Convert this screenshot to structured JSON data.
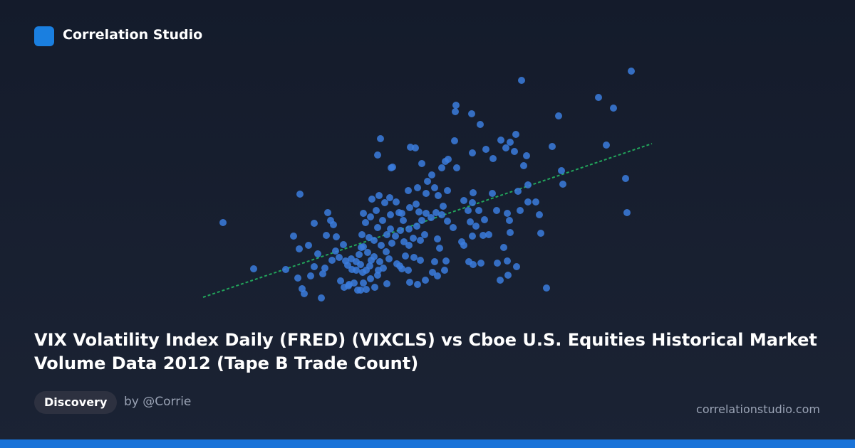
{
  "brand": "Correlation Studio",
  "title": "VIX Volatility Index Daily (FRED) (VIXCLS) vs Cboe U.S. Equities Historical Market Volume Data 2012 (Tape B Trade Count)",
  "tag": "Discovery",
  "author": "by @Corrie",
  "site": "correlationstudio.com",
  "chart_data": {
    "type": "scatter",
    "color": "#3b7ddd",
    "xlim": [
      0,
      640
    ],
    "ylim": [
      0,
      340
    ],
    "x": [
      33,
      76,
      121,
      141,
      132,
      138,
      144,
      147,
      171,
      156,
      161,
      166,
      153,
      140,
      161,
      180,
      188,
      192,
      178,
      176,
      191,
      196,
      202,
      205,
      210,
      203,
      214,
      217,
      222,
      230,
      234,
      246,
      240,
      229,
      226,
      220,
      224,
      230,
      228,
      233,
      230,
      240,
      248,
      242,
      252,
      260,
      267,
      276,
      280,
      268,
      257,
      250,
      245,
      255,
      262,
      266,
      258,
      250,
      263,
      277,
      284,
      289,
      294,
      300,
      305,
      294,
      286,
      284,
      295,
      304,
      308,
      312,
      318,
      325,
      332,
      340,
      348,
      356,
      342,
      335,
      330,
      320,
      326,
      312,
      303,
      296,
      271,
      250,
      254,
      269,
      293,
      306,
      318,
      348,
      340,
      349,
      361,
      360,
      359,
      382,
      394,
      383,
      402,
      412,
      423,
      436,
      444,
      430,
      442,
      459,
      455,
      452,
      504,
      495,
      508,
      510,
      461,
      447,
      411,
      384,
      383,
      371,
      377,
      392,
      417,
      432,
      450,
      461,
      472,
      477,
      435,
      436,
      427,
      432,
      422,
      433,
      445,
      487,
      479,
      406,
      398,
      383,
      380,
      388,
      371,
      368,
      378,
      384,
      395,
      418,
      400,
      560,
      581,
      606,
      571,
      598,
      600,
      358,
      345,
      334,
      344,
      327,
      317,
      306,
      295,
      293,
      281,
      270,
      275,
      287,
      310,
      316,
      334,
      337,
      346,
      330,
      310,
      301,
      282,
      268,
      263,
      238,
      227,
      236,
      245,
      253,
      239,
      241,
      213,
      208,
      198,
      186,
      173,
      184,
      220,
      234,
      251,
      209,
      226
    ],
    "values": [
      117,
      52,
      51,
      157,
      98,
      39,
      24,
      17,
      11,
      42,
      55,
      73,
      85,
      80,
      116,
      131,
      114,
      97,
      99,
      53,
      77,
      68,
      86,
      63,
      30,
      26,
      51,
      32,
      22,
      32,
      23,
      26,
      38,
      47,
      58,
      62,
      72,
      83,
      100,
      117,
      130,
      125,
      134,
      150,
      155,
      145,
      152,
      146,
      131,
      128,
      120,
      110,
      92,
      85,
      76,
      66,
      53,
      43,
      31,
      59,
      52,
      70,
      85,
      95,
      112,
      108,
      120,
      130,
      138,
      143,
      132,
      120,
      130,
      124,
      131,
      128,
      119,
      110,
      140,
      155,
      166,
      175,
      184,
      200,
      222,
      223,
      195,
      212,
      235,
      194,
      162,
      166,
      158,
      162,
      194,
      206,
      194,
      282,
      273,
      270,
      255,
      215,
      220,
      207,
      233,
      230,
      241,
      222,
      217,
      211,
      197,
      317,
      267,
      224,
      190,
      171,
      170,
      161,
      158,
      159,
      145,
      148,
      134,
      134,
      134,
      130,
      134,
      146,
      146,
      128,
      120,
      103,
      82,
      63,
      36,
      43,
      55,
      25,
      102,
      100,
      99,
      98,
      118,
      112,
      85,
      90,
      62,
      58,
      60,
      60,
      121,
      293,
      278,
      330,
      226,
      179,
      131,
      232,
      203,
      42,
      50,
      47,
      36,
      30,
      33,
      50,
      56,
      88,
      98,
      90,
      92,
      100,
      94,
      81,
      63,
      62,
      64,
      68,
      106,
      108,
      100,
      96,
      82,
      75,
      69,
      62,
      56,
      64,
      66,
      57,
      35,
      64,
      45,
      120,
      50,
      50,
      50,
      28,
      22
    ],
    "trend_line": {
      "color": "#22a55b",
      "x": [
        5,
        635
      ],
      "values": [
        12,
        228
      ]
    }
  }
}
